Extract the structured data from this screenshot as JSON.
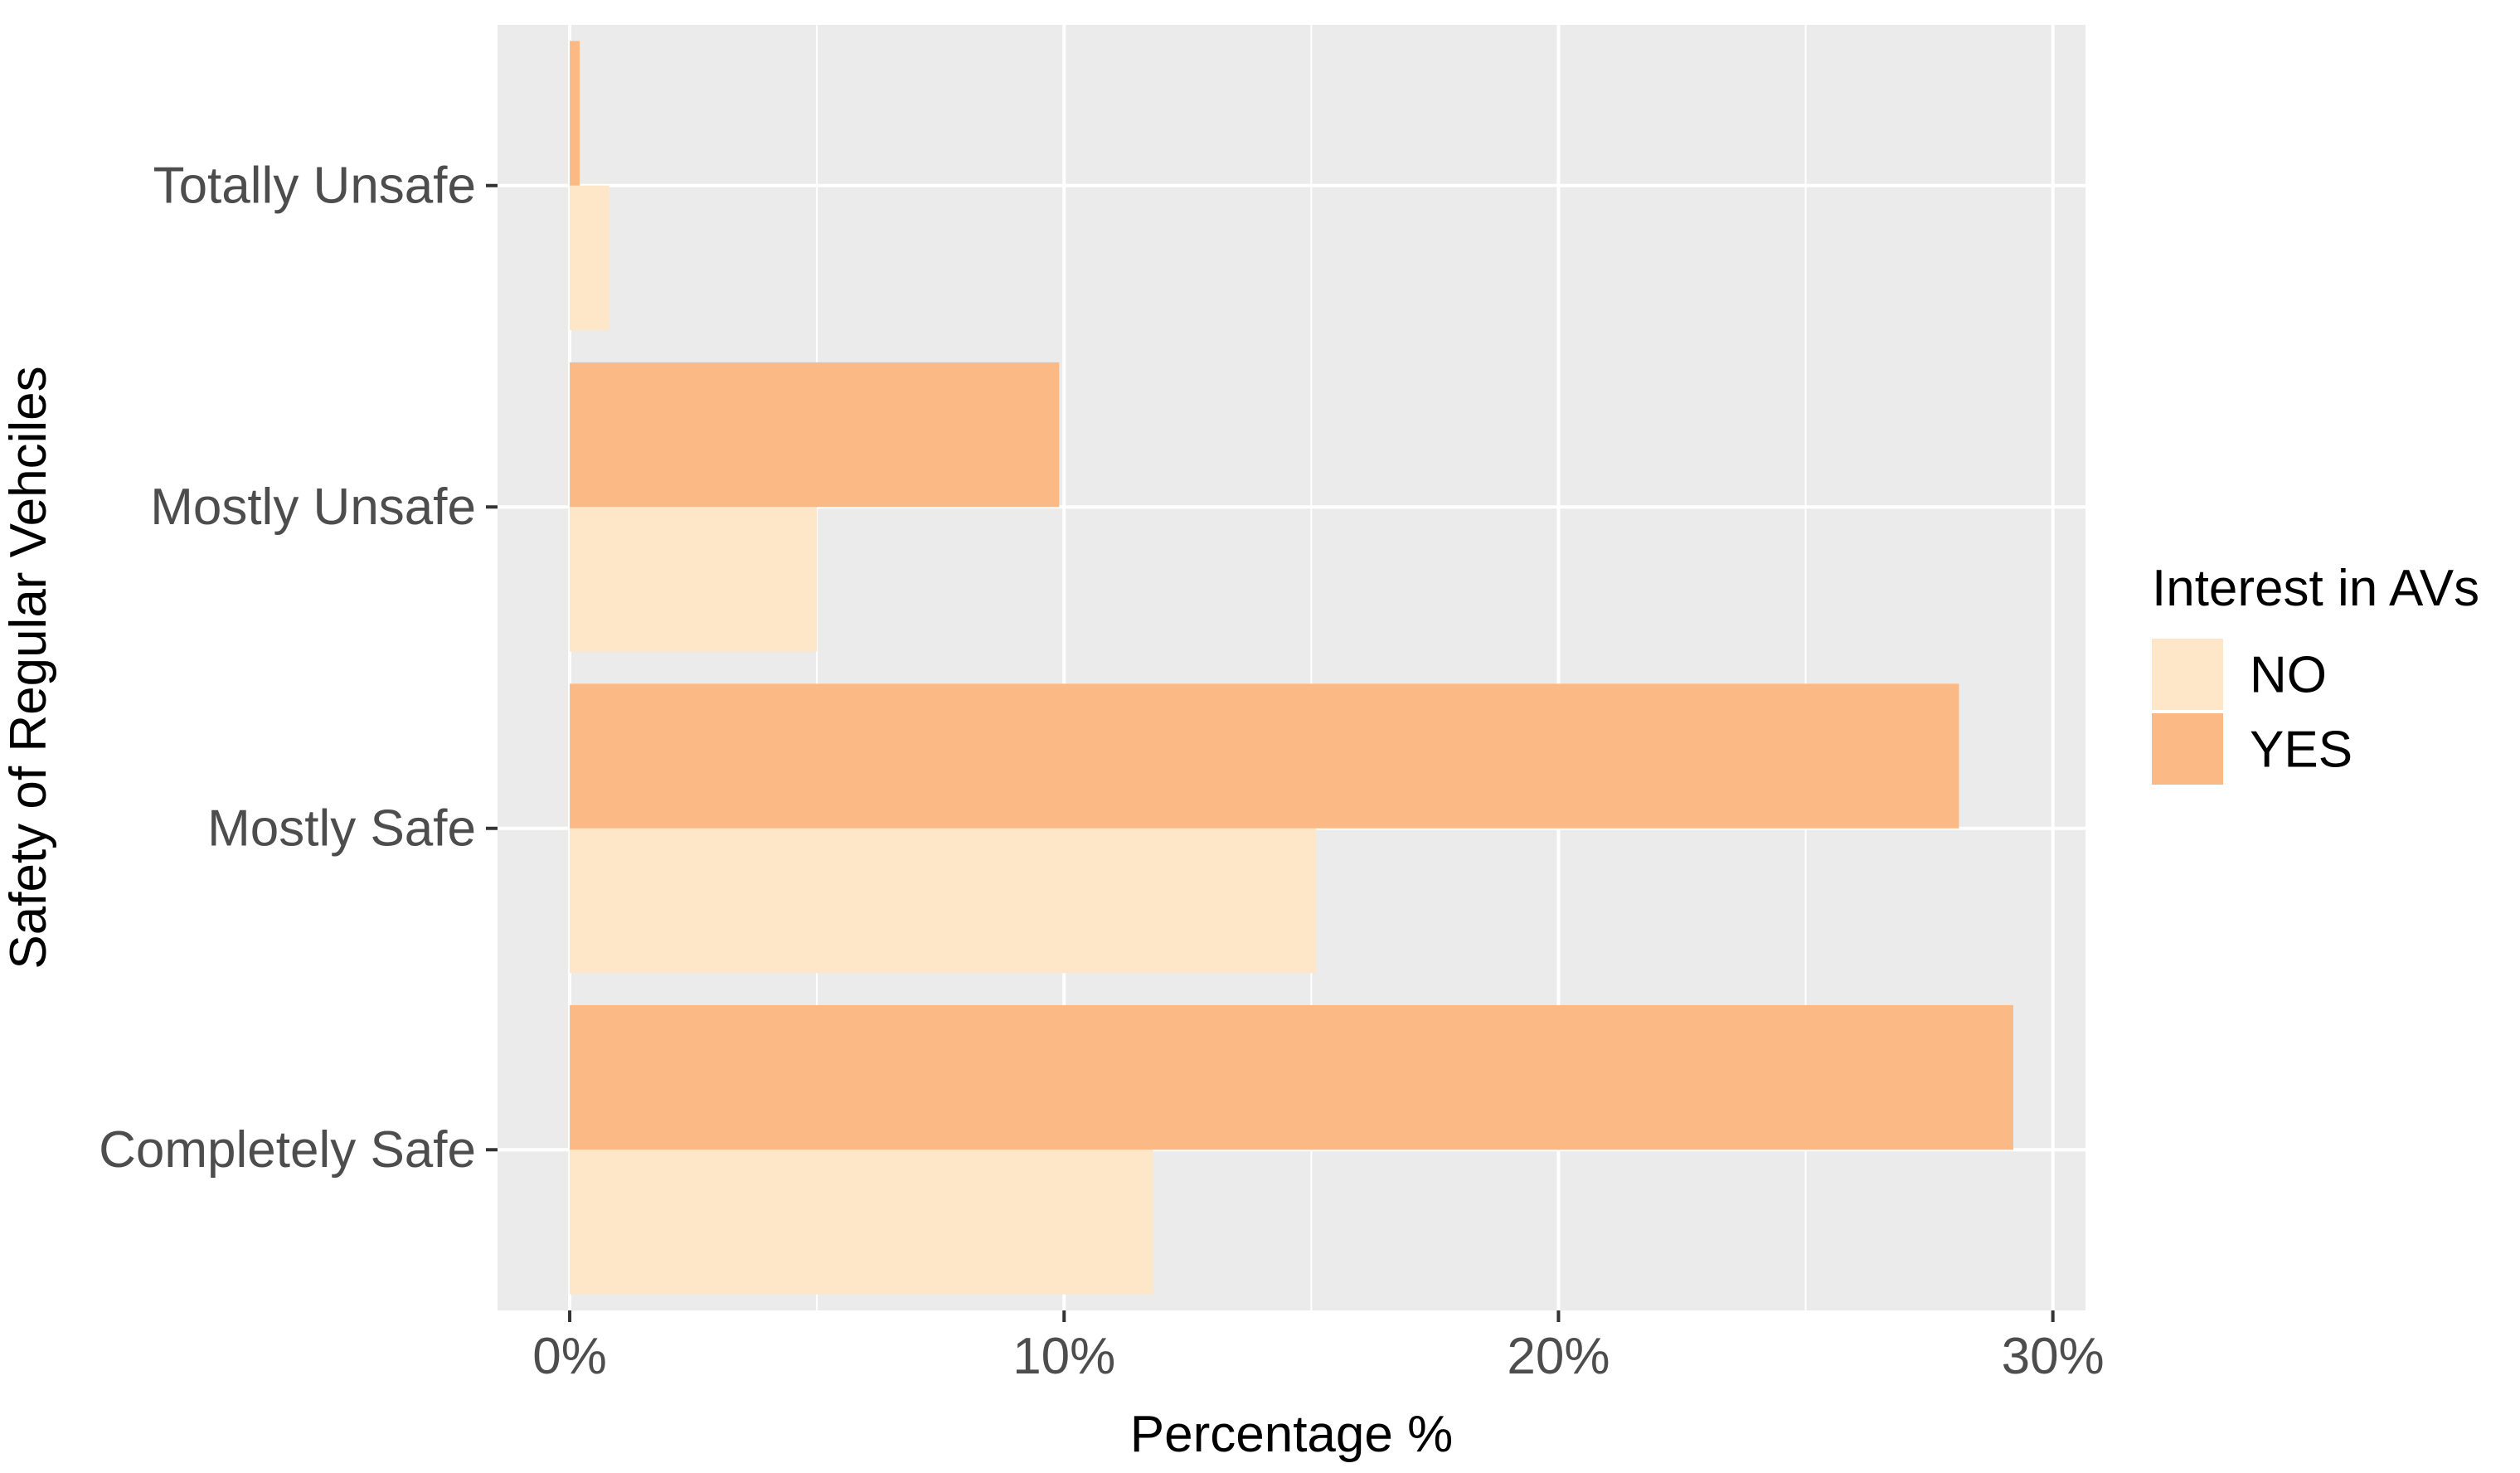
{
  "chart_data": {
    "type": "bar",
    "orientation": "horizontal",
    "xlabel": "Percentage %",
    "ylabel": "Safety of Regular Vehciles",
    "categories": [
      "Totally Unsafe",
      "Mostly Unsafe",
      "Mostly Safe",
      "Completely Safe"
    ],
    "series": [
      {
        "name": "NO",
        "values": [
          0.8,
          5.0,
          15.1,
          11.8
        ],
        "color": "#FEE6C8"
      },
      {
        "name": "YES",
        "values": [
          0.2,
          9.9,
          28.1,
          29.2
        ],
        "color": "#FBBA85"
      }
    ],
    "xlim": [
      -1.45,
      29.2
    ],
    "xticks": [
      0,
      10,
      20,
      30
    ],
    "xtick_labels": [
      "0%",
      "10%",
      "20%",
      "30%"
    ],
    "legend": {
      "title": "Interest in AVs",
      "position": "right"
    },
    "grid": true,
    "panel_background": "#EBEBEB",
    "grid_color": "#FFFFFF"
  }
}
